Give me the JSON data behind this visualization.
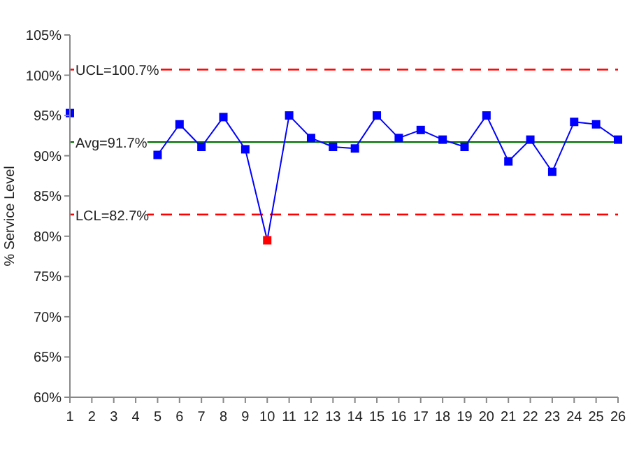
{
  "chart_data": {
    "type": "line",
    "ylabel": "% Service Level",
    "x": [
      1,
      2,
      3,
      4,
      5,
      6,
      7,
      8,
      9,
      10,
      11,
      12,
      13,
      14,
      15,
      16,
      17,
      18,
      19,
      20,
      21,
      22,
      23,
      24,
      25,
      26
    ],
    "series": [
      {
        "color": "#0000ff",
        "colors": [
          "#0000ff",
          "#0000ff",
          "#0000ff",
          "#0000ff",
          "#0000ff",
          "#0000ff",
          "#0000ff",
          "#0000ff",
          "#0000ff",
          "#ff0000",
          "#0000ff",
          "#0000ff",
          "#0000ff",
          "#0000ff",
          "#0000ff",
          "#0000ff",
          "#0000ff",
          "#0000ff",
          "#0000ff",
          "#0000ff",
          "#0000ff",
          "#0000ff",
          "#0000ff",
          "#0000ff",
          "#0000ff",
          "#0000ff"
        ],
        "values": [
          95.3,
          null,
          null,
          null,
          90.1,
          93.9,
          91.1,
          94.8,
          90.8,
          79.5,
          95.0,
          92.2,
          91.1,
          90.9,
          95.0,
          92.2,
          93.2,
          92.0,
          91.1,
          95.0,
          89.3,
          92.0,
          88.0,
          94.2,
          93.9,
          92.0
        ]
      }
    ],
    "xlim": [
      1,
      26
    ],
    "xticks": [
      1,
      2,
      3,
      4,
      5,
      6,
      7,
      8,
      9,
      10,
      11,
      12,
      13,
      14,
      15,
      16,
      17,
      18,
      19,
      20,
      21,
      22,
      23,
      24,
      25,
      26
    ],
    "ylim": [
      60,
      105
    ],
    "yticks": [
      {
        "value": 60,
        "label": "60%"
      },
      {
        "value": 65,
        "label": "65%"
      },
      {
        "value": 70,
        "label": "70%"
      },
      {
        "value": 75,
        "label": "75%"
      },
      {
        "value": 80,
        "label": "80%"
      },
      {
        "value": 85,
        "label": "85%"
      },
      {
        "value": 90,
        "label": "90%"
      },
      {
        "value": 95,
        "label": "95%"
      },
      {
        "value": 100,
        "label": "100%"
      },
      {
        "value": 105,
        "label": "105%"
      }
    ],
    "ref_lines": [
      {
        "axis": "y",
        "value": 100.7,
        "label": "UCL=100.7%",
        "color": "#ff0000",
        "line_style": "dashed"
      },
      {
        "axis": "y",
        "value": 91.7,
        "label": "Avg=91.7%",
        "color": "#007000",
        "line_style": "solid"
      },
      {
        "axis": "y",
        "value": 82.7,
        "label": "LCL=82.7%",
        "color": "#ff0000",
        "line_style": "dashed"
      }
    ],
    "grid": false,
    "marker": "square",
    "line_style": "solid"
  }
}
